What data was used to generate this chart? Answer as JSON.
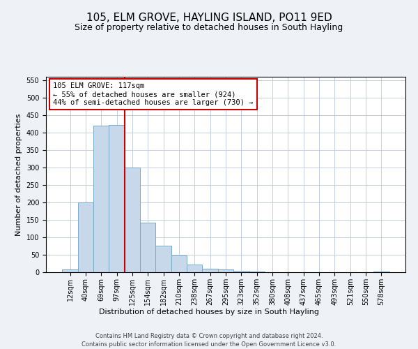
{
  "title": "105, ELM GROVE, HAYLING ISLAND, PO11 9ED",
  "subtitle": "Size of property relative to detached houses in South Hayling",
  "xlabel": "Distribution of detached houses by size in South Hayling",
  "ylabel": "Number of detached properties",
  "footer_line1": "Contains HM Land Registry data © Crown copyright and database right 2024.",
  "footer_line2": "Contains public sector information licensed under the Open Government Licence v3.0.",
  "categories": [
    "12sqm",
    "40sqm",
    "69sqm",
    "97sqm",
    "125sqm",
    "154sqm",
    "182sqm",
    "210sqm",
    "238sqm",
    "267sqm",
    "295sqm",
    "323sqm",
    "352sqm",
    "380sqm",
    "408sqm",
    "437sqm",
    "465sqm",
    "493sqm",
    "521sqm",
    "550sqm",
    "578sqm"
  ],
  "values": [
    8,
    200,
    420,
    422,
    300,
    143,
    77,
    48,
    23,
    11,
    8,
    5,
    2,
    1,
    0,
    0,
    0,
    0,
    0,
    0,
    3
  ],
  "bar_color": "#c8d8eb",
  "bar_edge_color": "#7aaac8",
  "vline_color": "#cc0000",
  "vline_x_index": 4,
  "annotation_text": "105 ELM GROVE: 117sqm\n← 55% of detached houses are smaller (924)\n44% of semi-detached houses are larger (730) →",
  "annotation_box_color": "white",
  "annotation_box_edge_color": "#cc0000",
  "ylim": [
    0,
    560
  ],
  "yticks": [
    0,
    50,
    100,
    150,
    200,
    250,
    300,
    350,
    400,
    450,
    500,
    550
  ],
  "background_color": "#eef2f7",
  "plot_background_color": "white",
  "title_fontsize": 11,
  "subtitle_fontsize": 9,
  "axis_label_fontsize": 8,
  "tick_fontsize": 7,
  "annotation_fontsize": 7.5,
  "footer_fontsize": 6,
  "grid_color": "#c5cfe0",
  "grid_linewidth": 0.7
}
